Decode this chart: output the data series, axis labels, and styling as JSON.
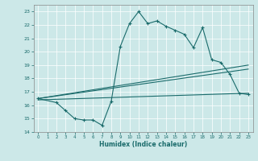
{
  "title": "",
  "xlabel": "Humidex (Indice chaleur)",
  "background_color": "#cce8e8",
  "grid_color": "#ffffff",
  "line_color": "#1a6b6b",
  "xlim": [
    -0.5,
    23.5
  ],
  "ylim": [
    14,
    23.5
  ],
  "yticks": [
    14,
    15,
    16,
    17,
    18,
    19,
    20,
    21,
    22,
    23
  ],
  "xticks": [
    0,
    1,
    2,
    3,
    4,
    5,
    6,
    7,
    8,
    9,
    10,
    11,
    12,
    13,
    14,
    15,
    16,
    17,
    18,
    19,
    20,
    21,
    22,
    23
  ],
  "line1_x": [
    0,
    2,
    3,
    4,
    5,
    6,
    7,
    8,
    9,
    10,
    11,
    12,
    13,
    14,
    15,
    16,
    17,
    18,
    19,
    20,
    21,
    22,
    23
  ],
  "line1_y": [
    16.5,
    16.2,
    15.6,
    15.0,
    14.9,
    14.9,
    14.5,
    16.3,
    20.4,
    22.1,
    23.0,
    22.1,
    22.3,
    21.9,
    21.6,
    21.3,
    20.3,
    21.8,
    19.4,
    19.2,
    18.3,
    16.9,
    16.8
  ],
  "line2_x": [
    0,
    23
  ],
  "line2_y": [
    16.5,
    19.0
  ],
  "line3_x": [
    0,
    23
  ],
  "line3_y": [
    16.5,
    18.7
  ],
  "line4_x": [
    0,
    23
  ],
  "line4_y": [
    16.4,
    16.9
  ],
  "marker_x": [
    0,
    2,
    3,
    4,
    5,
    6,
    7,
    8,
    9,
    10,
    11,
    12,
    13,
    14,
    15,
    16,
    17,
    18,
    19,
    20,
    21,
    22,
    23
  ],
  "marker_y": [
    16.5,
    16.2,
    15.6,
    15.0,
    14.9,
    14.9,
    14.5,
    16.3,
    20.4,
    22.1,
    23.0,
    22.1,
    22.3,
    21.9,
    21.6,
    21.3,
    20.3,
    21.8,
    19.4,
    19.2,
    18.3,
    16.9,
    16.8
  ]
}
